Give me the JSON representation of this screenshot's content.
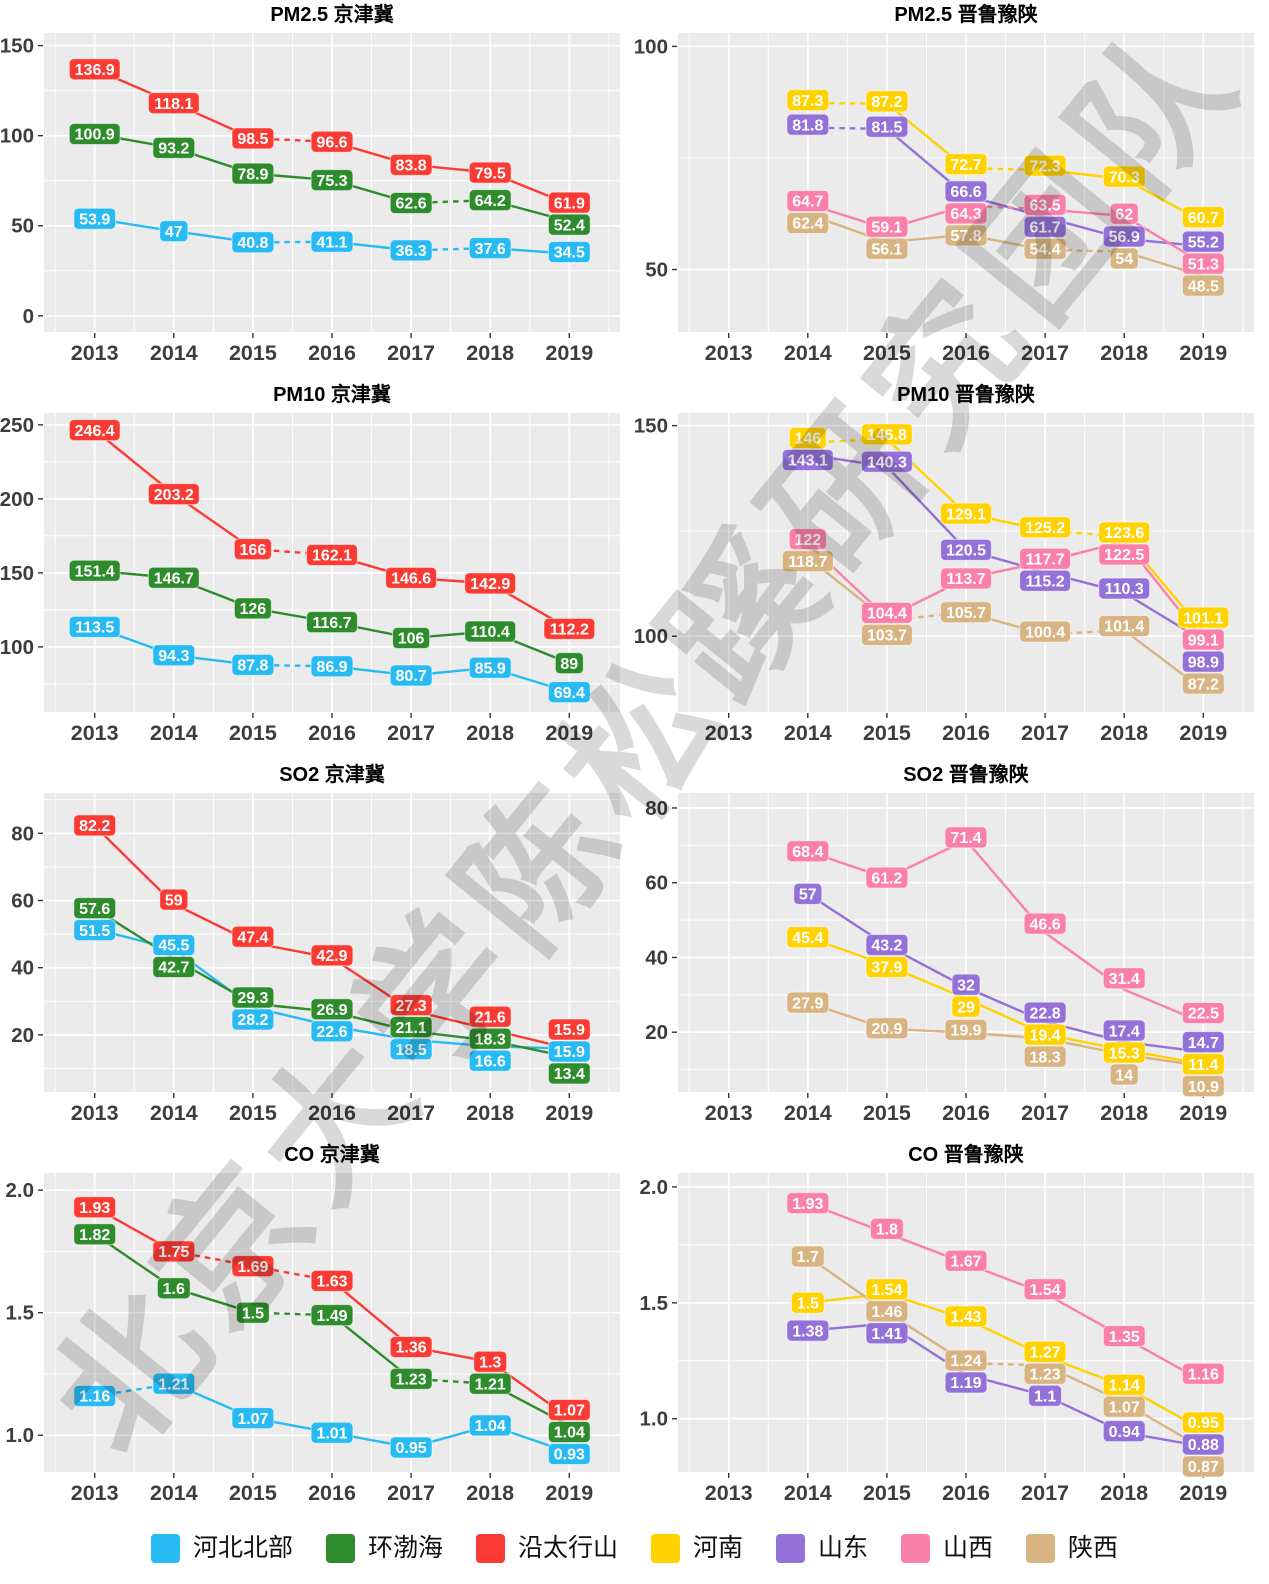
{
  "watermark": "北京大学陈松蹊研究团队",
  "legend": [
    {
      "label": "河北北部",
      "color": "#28baf2"
    },
    {
      "label": "环渤海",
      "color": "#2f8c2d"
    },
    {
      "label": "沿太行山",
      "color": "#fa3b33"
    },
    {
      "label": "河南",
      "color": "#ffd200"
    },
    {
      "label": "山东",
      "color": "#9471d8"
    },
    {
      "label": "山西",
      "color": "#fa80aa"
    },
    {
      "label": "陕西",
      "color": "#d8b482"
    }
  ],
  "region_colors": {
    "河北北部": "#28baf2",
    "环渤海": "#2f8c2d",
    "沿太行山": "#fa3b33",
    "河南": "#ffd200",
    "山东": "#9471d8",
    "山西": "#fa80aa",
    "陕西": "#d8b482"
  },
  "chart_data": [
    {
      "id": "pm25-jjj",
      "type": "line",
      "pollutant": "PM2.5",
      "region_label": "京津冀",
      "x": [
        2013,
        2014,
        2015,
        2016,
        2017,
        2018,
        2019
      ],
      "ylim": [
        -9,
        157
      ],
      "yticks": [
        0,
        50,
        100,
        150
      ],
      "grid": true,
      "series": [
        {
          "name": "河北北部",
          "values": [
            53.9,
            47,
            40.8,
            41.1,
            36.3,
            37.6,
            34.5
          ],
          "dashed_segments": [
            [
              2,
              3
            ],
            [
              4,
              5
            ]
          ]
        },
        {
          "name": "环渤海",
          "values": [
            100.9,
            93.2,
            78.9,
            75.3,
            62.6,
            64.2,
            52.4
          ],
          "dashed_segments": [
            [
              4,
              5
            ]
          ]
        },
        {
          "name": "沿太行山",
          "values": [
            136.9,
            118.1,
            98.5,
            96.6,
            83.8,
            79.5,
            61.9
          ],
          "dashed_segments": [
            [
              2,
              3
            ]
          ]
        }
      ]
    },
    {
      "id": "pm25-jlys",
      "type": "line",
      "pollutant": "PM2.5",
      "region_label": "晋鲁豫陕",
      "x": [
        2013,
        2014,
        2015,
        2016,
        2017,
        2018,
        2019
      ],
      "ylim": [
        36,
        103
      ],
      "yticks": [
        50,
        100
      ],
      "grid": true,
      "series": [
        {
          "name": "河南",
          "values": [
            null,
            87.3,
            87.2,
            72.7,
            72.3,
            70.3,
            60.7
          ],
          "dashed_segments": [
            [
              1,
              2
            ],
            [
              3,
              4
            ]
          ]
        },
        {
          "name": "山东",
          "values": [
            null,
            81.8,
            81.5,
            66.6,
            61.7,
            56.9,
            55.2
          ],
          "dashed_segments": [
            [
              1,
              2
            ]
          ]
        },
        {
          "name": "山西",
          "values": [
            null,
            64.7,
            59.1,
            64.3,
            63.5,
            62,
            51.3
          ],
          "dashed_segments": [
            [
              3,
              4
            ]
          ]
        },
        {
          "name": "陕西",
          "values": [
            null,
            62.4,
            56.1,
            57.8,
            54.4,
            54,
            48.5
          ],
          "dashed_segments": [
            [
              4,
              5
            ]
          ]
        }
      ]
    },
    {
      "id": "pm10-jjj",
      "type": "line",
      "pollutant": "PM10",
      "region_label": "京津冀",
      "x": [
        2013,
        2014,
        2015,
        2016,
        2017,
        2018,
        2019
      ],
      "ylim": [
        56,
        258
      ],
      "yticks": [
        100,
        150,
        200,
        250
      ],
      "grid": true,
      "series": [
        {
          "name": "河北北部",
          "values": [
            113.5,
            94.3,
            87.8,
            86.9,
            80.7,
            85.9,
            69.4
          ],
          "dashed_segments": [
            [
              2,
              3
            ]
          ]
        },
        {
          "name": "环渤海",
          "values": [
            151.4,
            146.7,
            126,
            116.7,
            106,
            110.4,
            89
          ],
          "dashed_segments": []
        },
        {
          "name": "沿太行山",
          "values": [
            246.4,
            203.2,
            166,
            162.1,
            146.6,
            142.9,
            112.2
          ],
          "dashed_segments": [
            [
              2,
              3
            ]
          ]
        }
      ]
    },
    {
      "id": "pm10-jlys",
      "type": "line",
      "pollutant": "PM10",
      "region_label": "晋鲁豫陕",
      "x": [
        2013,
        2014,
        2015,
        2016,
        2017,
        2018,
        2019
      ],
      "ylim": [
        82,
        153
      ],
      "yticks": [
        100,
        150
      ],
      "grid": true,
      "series": [
        {
          "name": "河南",
          "values": [
            null,
            146,
            146.8,
            129.1,
            125.2,
            123.6,
            101.1
          ],
          "dashed_segments": [
            [
              1,
              2
            ],
            [
              4,
              5
            ]
          ]
        },
        {
          "name": "山东",
          "values": [
            null,
            143.1,
            140.3,
            120.5,
            115.2,
            110.3,
            98.9
          ],
          "dashed_segments": []
        },
        {
          "name": "山西",
          "values": [
            null,
            122,
            104.4,
            113.7,
            117.7,
            122.5,
            99.1
          ],
          "dashed_segments": []
        },
        {
          "name": "陕西",
          "values": [
            null,
            118.7,
            103.7,
            105.7,
            100.4,
            101.4,
            87.2
          ],
          "dashed_segments": [
            [
              2,
              3
            ],
            [
              4,
              5
            ]
          ]
        }
      ]
    },
    {
      "id": "so2-jjj",
      "type": "line",
      "pollutant": "SO2",
      "region_label": "京津冀",
      "x": [
        2013,
        2014,
        2015,
        2016,
        2017,
        2018,
        2019
      ],
      "ylim": [
        3,
        92
      ],
      "yticks": [
        20,
        40,
        60,
        80
      ],
      "grid": true,
      "series": [
        {
          "name": "河北北部",
          "values": [
            51.5,
            45.5,
            28.2,
            22.6,
            18.5,
            16.6,
            15.9
          ],
          "dashed_segments": []
        },
        {
          "name": "环渤海",
          "values": [
            57.6,
            42.7,
            29.3,
            26.9,
            21.1,
            18.3,
            13.4
          ],
          "dashed_segments": []
        },
        {
          "name": "沿太行山",
          "values": [
            82.2,
            59,
            47.4,
            42.9,
            27.3,
            21.6,
            15.9
          ],
          "dashed_segments": []
        }
      ]
    },
    {
      "id": "so2-jlys",
      "type": "line",
      "pollutant": "SO2",
      "region_label": "晋鲁豫陕",
      "x": [
        2013,
        2014,
        2015,
        2016,
        2017,
        2018,
        2019
      ],
      "ylim": [
        4,
        84
      ],
      "yticks": [
        20,
        40,
        60,
        80
      ],
      "grid": true,
      "series": [
        {
          "name": "河南",
          "values": [
            null,
            45.4,
            37.9,
            29,
            19.4,
            15.3,
            11.4
          ],
          "dashed_segments": []
        },
        {
          "name": "山东",
          "values": [
            null,
            57,
            43.2,
            32,
            22.8,
            17.4,
            14.7
          ],
          "dashed_segments": []
        },
        {
          "name": "山西",
          "values": [
            null,
            68.4,
            61.2,
            71.4,
            46.6,
            31.4,
            22.5
          ],
          "dashed_segments": []
        },
        {
          "name": "陕西",
          "values": [
            null,
            27.9,
            20.9,
            19.9,
            18.3,
            14,
            10.9
          ],
          "dashed_segments": []
        }
      ]
    },
    {
      "id": "co-jjj",
      "type": "line",
      "pollutant": "CO",
      "region_label": "京津冀",
      "x": [
        2013,
        2014,
        2015,
        2016,
        2017,
        2018,
        2019
      ],
      "ylim": [
        0.85,
        2.07
      ],
      "yticks": [
        1.0,
        1.5,
        2.0
      ],
      "ytick_labels": [
        "1.0",
        "1.5",
        "2.0"
      ],
      "grid": true,
      "series": [
        {
          "name": "河北北部",
          "values": [
            1.16,
            1.21,
            1.07,
            1.01,
            0.95,
            1.04,
            0.93
          ],
          "dashed_segments": [
            [
              0,
              1
            ]
          ]
        },
        {
          "name": "环渤海",
          "values": [
            1.82,
            1.6,
            1.5,
            1.49,
            1.23,
            1.21,
            1.04
          ],
          "dashed_segments": [
            [
              2,
              3
            ],
            [
              4,
              5
            ]
          ]
        },
        {
          "name": "沿太行山",
          "values": [
            1.93,
            1.75,
            1.69,
            1.63,
            1.36,
            1.3,
            1.07
          ],
          "dashed_segments": [
            [
              1,
              2
            ],
            [
              2,
              3
            ]
          ]
        }
      ]
    },
    {
      "id": "co-jlys",
      "type": "line",
      "pollutant": "CO",
      "region_label": "晋鲁豫陕",
      "x": [
        2013,
        2014,
        2015,
        2016,
        2017,
        2018,
        2019
      ],
      "ylim": [
        0.77,
        2.06
      ],
      "yticks": [
        1.0,
        1.5,
        2.0
      ],
      "ytick_labels": [
        "1.0",
        "1.5",
        "2.0"
      ],
      "grid": true,
      "series": [
        {
          "name": "河南",
          "values": [
            null,
            1.5,
            1.54,
            1.43,
            1.27,
            1.14,
            0.95
          ],
          "dashed_segments": []
        },
        {
          "name": "山东",
          "values": [
            null,
            1.38,
            1.41,
            1.19,
            1.1,
            0.94,
            0.88
          ],
          "dashed_segments": []
        },
        {
          "name": "山西",
          "values": [
            null,
            1.93,
            1.8,
            1.67,
            1.54,
            1.35,
            1.16
          ],
          "dashed_segments": []
        },
        {
          "name": "陕西",
          "values": [
            null,
            1.7,
            1.46,
            1.24,
            1.23,
            1.07,
            0.87
          ],
          "dashed_segments": [
            [
              3,
              4
            ]
          ]
        }
      ]
    }
  ]
}
